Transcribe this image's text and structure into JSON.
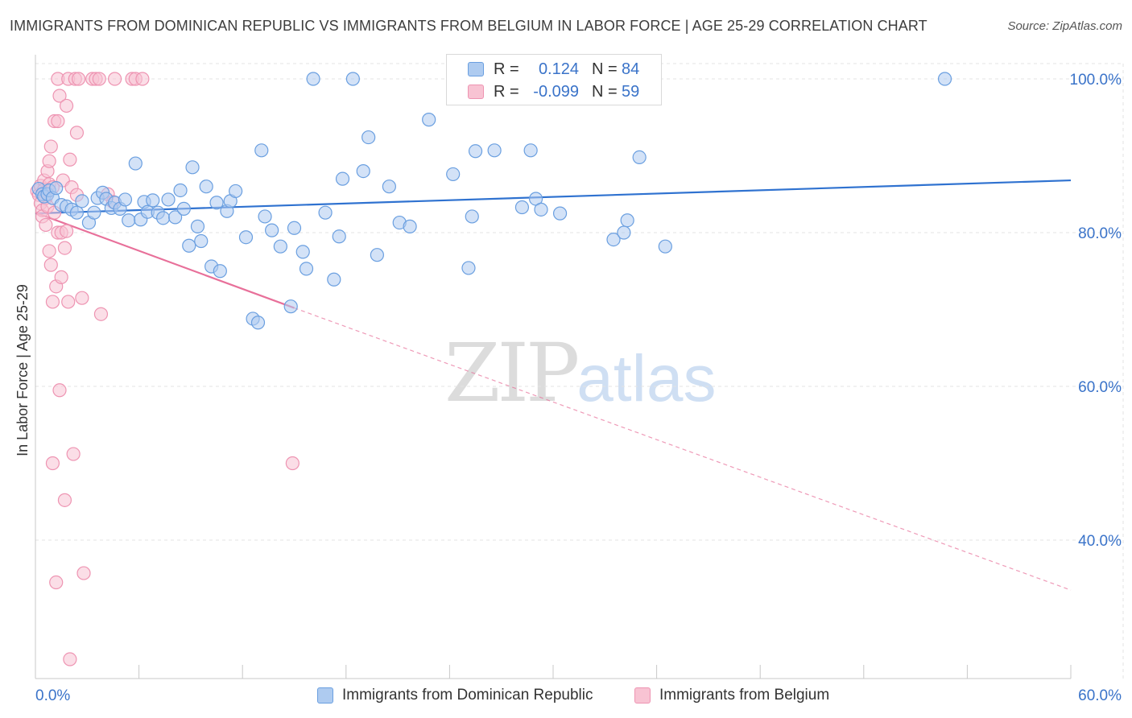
{
  "title": "IMMIGRANTS FROM DOMINICAN REPUBLIC VS IMMIGRANTS FROM BELGIUM IN LABOR FORCE | AGE 25-29 CORRELATION CHART",
  "source": "Source: ZipAtlas.com",
  "watermark": {
    "part1": "ZIP",
    "part2": "atlas"
  },
  "colors": {
    "blue_fill": "#aecbf0",
    "blue_stroke": "#6a9fe0",
    "blue_line": "#2f72d0",
    "pink_fill": "#f8c3d3",
    "pink_stroke": "#ee94b2",
    "pink_line": "#e8709a",
    "axis_text": "#3a73c9",
    "grid": "#e3e3e3"
  },
  "legend": {
    "rows": [
      {
        "r_label": "R =",
        "r_value": "0.124",
        "n_label": "N =",
        "n_value": "84"
      },
      {
        "r_label": "R =",
        "r_value": "-0.099",
        "n_label": "N =",
        "n_value": "59"
      }
    ]
  },
  "bottom_legend": [
    "Immigrants from Dominican Republic",
    "Immigrants from Belgium"
  ],
  "chart_data": {
    "type": "scatter",
    "title": "IMMIGRANTS FROM DOMINICAN REPUBLIC VS IMMIGRANTS FROM BELGIUM IN LABOR FORCE | AGE 25-29 CORRELATION CHART",
    "xlabel": "",
    "ylabel": "In Labor Force | Age 25-29",
    "xlim": [
      0,
      60
    ],
    "ylim": [
      22,
      101.5
    ],
    "x_tick_labels": [
      "0.0%",
      "60.0%"
    ],
    "y_ticks": [
      40,
      60,
      80,
      100
    ],
    "y_tick_labels": [
      "40.0%",
      "60.0%",
      "80.0%",
      "100.0%"
    ],
    "grid": "horizontal dashed",
    "legend_placement": "top-center and bottom",
    "series": [
      {
        "name": "Immigrants from Dominican Republic",
        "R": 0.124,
        "N": 84,
        "trend": {
          "x": [
            0,
            60
          ],
          "y": [
            82.5,
            86.8
          ],
          "style": "solid"
        },
        "points": [
          [
            0.2,
            85.7
          ],
          [
            0.4,
            85.0
          ],
          [
            0.5,
            84.7
          ],
          [
            0.7,
            85.0
          ],
          [
            0.8,
            85.5
          ],
          [
            1.0,
            84.5
          ],
          [
            1.2,
            85.8
          ],
          [
            1.5,
            83.6
          ],
          [
            1.8,
            83.4
          ],
          [
            2.1,
            83.0
          ],
          [
            2.4,
            82.6
          ],
          [
            2.7,
            84.1
          ],
          [
            3.1,
            81.3
          ],
          [
            3.4,
            82.6
          ],
          [
            3.6,
            84.5
          ],
          [
            3.9,
            85.2
          ],
          [
            4.1,
            84.4
          ],
          [
            4.4,
            83.2
          ],
          [
            4.6,
            83.9
          ],
          [
            4.9,
            83.1
          ],
          [
            5.2,
            84.3
          ],
          [
            5.4,
            81.6
          ],
          [
            5.8,
            89.0
          ],
          [
            6.1,
            81.7
          ],
          [
            6.3,
            84.0
          ],
          [
            6.5,
            82.7
          ],
          [
            6.8,
            84.2
          ],
          [
            7.1,
            82.6
          ],
          [
            7.4,
            81.9
          ],
          [
            7.7,
            84.3
          ],
          [
            8.1,
            82.0
          ],
          [
            8.4,
            85.5
          ],
          [
            8.6,
            83.1
          ],
          [
            8.9,
            78.3
          ],
          [
            9.1,
            88.5
          ],
          [
            9.4,
            80.8
          ],
          [
            9.6,
            78.9
          ],
          [
            9.9,
            86.0
          ],
          [
            10.2,
            75.6
          ],
          [
            10.5,
            83.9
          ],
          [
            10.7,
            75.0
          ],
          [
            11.1,
            82.8
          ],
          [
            11.3,
            84.1
          ],
          [
            11.6,
            85.4
          ],
          [
            12.2,
            79.4
          ],
          [
            12.6,
            68.8
          ],
          [
            12.9,
            68.3
          ],
          [
            13.1,
            90.7
          ],
          [
            13.3,
            82.1
          ],
          [
            13.7,
            80.3
          ],
          [
            14.2,
            78.2
          ],
          [
            14.8,
            70.4
          ],
          [
            15.0,
            80.6
          ],
          [
            15.5,
            77.5
          ],
          [
            15.7,
            75.3
          ],
          [
            16.1,
            100.0
          ],
          [
            16.8,
            82.6
          ],
          [
            17.3,
            73.9
          ],
          [
            17.6,
            79.5
          ],
          [
            17.8,
            87.0
          ],
          [
            18.4,
            100.0
          ],
          [
            19.0,
            88.0
          ],
          [
            19.3,
            92.4
          ],
          [
            19.8,
            77.1
          ],
          [
            20.5,
            86.0
          ],
          [
            21.1,
            81.3
          ],
          [
            21.7,
            80.8
          ],
          [
            22.8,
            94.7
          ],
          [
            24.2,
            87.6
          ],
          [
            25.1,
            75.4
          ],
          [
            25.3,
            82.1
          ],
          [
            25.5,
            90.6
          ],
          [
            26.6,
            90.7
          ],
          [
            28.2,
            83.3
          ],
          [
            28.7,
            90.7
          ],
          [
            29.0,
            84.4
          ],
          [
            29.3,
            83.0
          ],
          [
            30.4,
            82.5
          ],
          [
            33.5,
            79.1
          ],
          [
            34.1,
            80.0
          ],
          [
            34.3,
            81.6
          ],
          [
            35.0,
            89.8
          ],
          [
            36.5,
            78.2
          ],
          [
            52.7,
            100.0
          ]
        ]
      },
      {
        "name": "Immigrants from Belgium",
        "R": -0.099,
        "N": 59,
        "trend": {
          "x": [
            0,
            15
          ],
          "y": [
            82.6,
            70.2
          ],
          "style": "solid",
          "extended_to": {
            "x": 60,
            "y": 33.5,
            "style": "dashed"
          }
        },
        "points": [
          [
            0.1,
            85.4
          ],
          [
            0.2,
            84.9
          ],
          [
            0.3,
            86.1
          ],
          [
            0.3,
            83.8
          ],
          [
            0.4,
            82.9
          ],
          [
            0.4,
            82.1
          ],
          [
            0.5,
            86.8
          ],
          [
            0.5,
            85.6
          ],
          [
            0.6,
            84.5
          ],
          [
            0.6,
            81.0
          ],
          [
            0.7,
            88.0
          ],
          [
            0.7,
            83.4
          ],
          [
            0.8,
            89.3
          ],
          [
            0.8,
            86.3
          ],
          [
            0.8,
            77.6
          ],
          [
            0.9,
            91.2
          ],
          [
            0.9,
            75.8
          ],
          [
            1.0,
            85.9
          ],
          [
            1.0,
            71.0
          ],
          [
            1.0,
            50.0
          ],
          [
            1.1,
            94.5
          ],
          [
            1.1,
            82.6
          ],
          [
            1.2,
            73.0
          ],
          [
            1.2,
            34.5
          ],
          [
            1.3,
            100.0
          ],
          [
            1.3,
            94.5
          ],
          [
            1.3,
            80.0
          ],
          [
            1.4,
            97.8
          ],
          [
            1.4,
            59.5
          ],
          [
            1.5,
            80.0
          ],
          [
            1.5,
            74.2
          ],
          [
            1.6,
            86.8
          ],
          [
            1.7,
            78.0
          ],
          [
            1.7,
            45.2
          ],
          [
            1.8,
            96.5
          ],
          [
            1.8,
            80.2
          ],
          [
            1.9,
            100.0
          ],
          [
            1.9,
            71.0
          ],
          [
            2.0,
            89.5
          ],
          [
            2.0,
            24.5
          ],
          [
            2.1,
            85.9
          ],
          [
            2.2,
            51.2
          ],
          [
            2.3,
            100.0
          ],
          [
            2.4,
            93.0
          ],
          [
            2.4,
            84.9
          ],
          [
            2.5,
            100.0
          ],
          [
            2.7,
            71.5
          ],
          [
            2.8,
            35.7
          ],
          [
            3.3,
            100.0
          ],
          [
            3.5,
            100.0
          ],
          [
            3.7,
            100.0
          ],
          [
            3.8,
            69.4
          ],
          [
            4.2,
            85.0
          ],
          [
            4.5,
            84.0
          ],
          [
            4.6,
            100.0
          ],
          [
            5.6,
            100.0
          ],
          [
            5.8,
            100.0
          ],
          [
            6.2,
            100.0
          ],
          [
            14.9,
            50.0
          ]
        ]
      }
    ]
  }
}
